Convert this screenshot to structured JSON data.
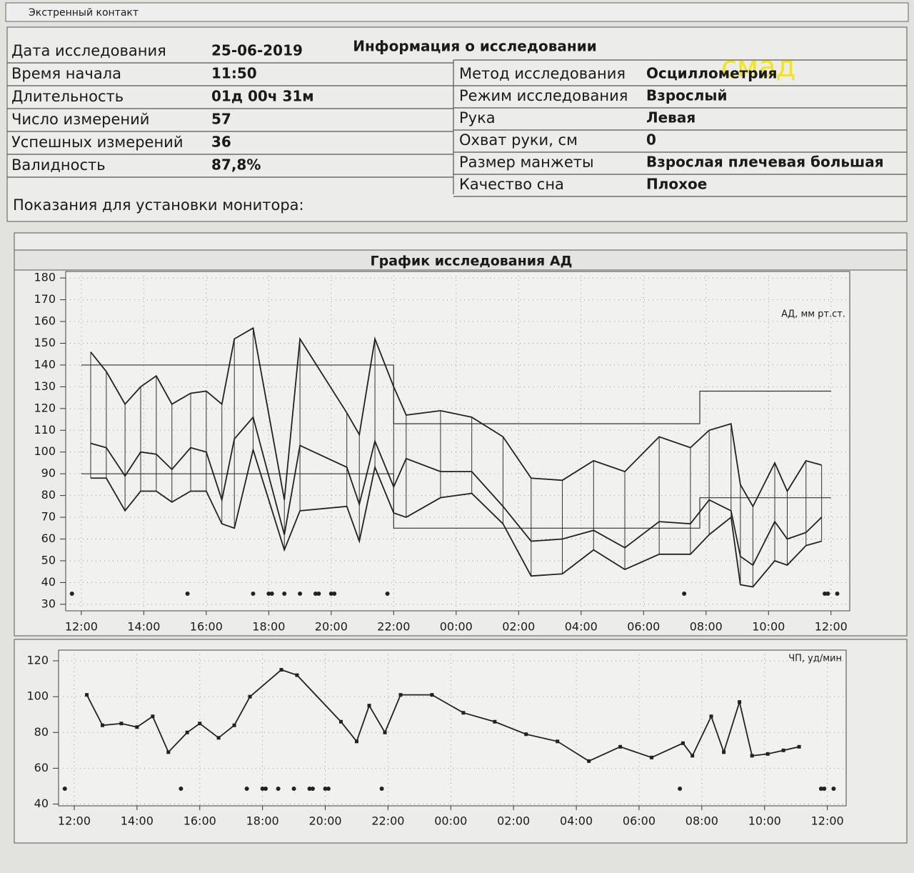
{
  "header": "Экстренный контакт",
  "annotation": "смад",
  "info": {
    "title": "Информация о исследовании",
    "left": [
      [
        "Дата исследования",
        "25-06-2019"
      ],
      [
        "Время начала",
        "11:50"
      ],
      [
        "Длительность",
        "01д 00ч 31м"
      ],
      [
        "Число измерений",
        "57"
      ],
      [
        "Успешных измерений",
        "36"
      ],
      [
        "Валидность",
        "87,8%"
      ]
    ],
    "right": [
      [
        "Метод исследования",
        "Осциллометрия"
      ],
      [
        "Режим исследования",
        "Взрослый"
      ],
      [
        "Рука",
        "Левая"
      ],
      [
        "Охват руки, см",
        "0"
      ],
      [
        "Размер манжеты",
        "Взрослая плечевая большая"
      ],
      [
        "Качество сна",
        "Плохое"
      ]
    ],
    "note": "Показания для установки монитора:"
  },
  "chart_data": [
    {
      "type": "line",
      "title": "График исследования АД",
      "y_label": "АД, мм рт.ст.",
      "x": [
        12.3,
        12.8,
        13.4,
        13.9,
        14.4,
        14.9,
        15.5,
        16.0,
        16.5,
        16.9,
        17.5,
        18.5,
        19.0,
        20.5,
        20.9,
        21.4,
        22.0,
        22.4,
        23.5,
        24.5,
        25.5,
        26.4,
        27.4,
        28.4,
        29.4,
        30.5,
        31.5,
        32.1,
        32.8,
        33.1,
        33.5,
        34.2,
        34.6,
        35.2,
        35.7
      ],
      "series": [
        {
          "color": "#222",
          "values": [
            146,
            137,
            122,
            130,
            135,
            122,
            127,
            128,
            122,
            152,
            157,
            78,
            152,
            118,
            108,
            152,
            130,
            117,
            119,
            116,
            107,
            88,
            87,
            96,
            91,
            107,
            102,
            110,
            113,
            85,
            75,
            95,
            82,
            96,
            94
          ]
        },
        {
          "color": "#222",
          "values": [
            104,
            102,
            89,
            100,
            99,
            92,
            102,
            100,
            78,
            106,
            116,
            62,
            103,
            93,
            76,
            105,
            84,
            97,
            91,
            91,
            75,
            59,
            60,
            64,
            56,
            68,
            67,
            78,
            73,
            52,
            48,
            68,
            60,
            63,
            70
          ]
        },
        {
          "color": "#222",
          "values": [
            88,
            88,
            73,
            82,
            82,
            77,
            82,
            82,
            67,
            65,
            101,
            55,
            73,
            75,
            59,
            93,
            72,
            70,
            79,
            81,
            67,
            43,
            44,
            55,
            46,
            53,
            53,
            62,
            70,
            39,
            38,
            50,
            48,
            57,
            59
          ]
        }
      ],
      "limits": [
        {
          "x": [
            12,
            22,
            22,
            31.8,
            31.8,
            36
          ],
          "values": [
            140,
            140,
            113,
            113,
            128,
            128
          ]
        },
        {
          "x": [
            12,
            22,
            22,
            31.8,
            31.8,
            36
          ],
          "values": [
            90,
            90,
            65,
            65,
            79,
            79
          ]
        }
      ],
      "markers": [
        11.7,
        15.4,
        17.5,
        18.0,
        18.1,
        18.5,
        19.0,
        19.5,
        19.6,
        20.0,
        20.1,
        21.8,
        31.3,
        35.8,
        35.9,
        36.2
      ],
      "xlim": [
        11.5,
        36.6
      ],
      "ylim": [
        27,
        183
      ],
      "xticks": [
        {
          "value": 12,
          "label": "12:00"
        },
        {
          "value": 14,
          "label": "14:00"
        },
        {
          "value": 16,
          "label": "16:00"
        },
        {
          "value": 18,
          "label": "18:00"
        },
        {
          "value": 20,
          "label": "20:00"
        },
        {
          "value": 22,
          "label": "22:00"
        },
        {
          "value": 24,
          "label": "00:00"
        },
        {
          "value": 26,
          "label": "02:00"
        },
        {
          "value": 28,
          "label": "04:00"
        },
        {
          "value": 30,
          "label": "06:00"
        },
        {
          "value": 32,
          "label": "08:00"
        },
        {
          "value": 34,
          "label": "10:00"
        },
        {
          "value": 36,
          "label": "12:00"
        }
      ],
      "yticks": [
        30,
        40,
        50,
        60,
        70,
        80,
        90,
        100,
        110,
        120,
        130,
        140,
        150,
        160,
        170,
        180
      ],
      "grid": true
    },
    {
      "type": "line",
      "y_label": "ЧП, уд/мин",
      "x": [
        12.4,
        12.9,
        13.5,
        14.0,
        14.5,
        15.0,
        15.6,
        16.0,
        16.6,
        17.1,
        17.6,
        18.6,
        19.1,
        20.5,
        21.0,
        21.4,
        21.9,
        22.4,
        23.4,
        24.4,
        25.4,
        26.4,
        27.4,
        28.4,
        29.4,
        30.4,
        31.4,
        31.7,
        32.3,
        32.7,
        33.2,
        33.6,
        34.1,
        34.6,
        35.1
      ],
      "series": [
        {
          "color": "#222",
          "values": [
            101,
            84,
            85,
            83,
            89,
            69,
            80,
            85,
            77,
            84,
            100,
            115,
            112,
            86,
            75,
            95,
            80,
            101,
            101,
            91,
            86,
            79,
            75,
            64,
            72,
            66,
            74,
            67,
            89,
            69,
            97,
            67,
            68,
            70,
            72
          ]
        }
      ],
      "markers": [
        11.7,
        15.4,
        17.5,
        18.0,
        18.1,
        18.5,
        19.0,
        19.5,
        19.6,
        20.0,
        20.1,
        21.8,
        31.3,
        35.8,
        35.9,
        36.2
      ],
      "xlim": [
        11.5,
        36.6
      ],
      "ylim": [
        39,
        126
      ],
      "xticks": [
        {
          "value": 12,
          "label": "12:00"
        },
        {
          "value": 14,
          "label": "14:00"
        },
        {
          "value": 16,
          "label": "16:00"
        },
        {
          "value": 18,
          "label": "18:00"
        },
        {
          "value": 20,
          "label": "20:00"
        },
        {
          "value": 22,
          "label": "22:00"
        },
        {
          "value": 24,
          "label": "00:00"
        },
        {
          "value": 26,
          "label": "02:00"
        },
        {
          "value": 28,
          "label": "04:00"
        },
        {
          "value": 30,
          "label": "06:00"
        },
        {
          "value": 32,
          "label": "08:00"
        },
        {
          "value": 34,
          "label": "10:00"
        },
        {
          "value": 36,
          "label": "12:00"
        }
      ],
      "yticks": [
        40,
        60,
        80,
        100,
        120
      ],
      "grid": true
    }
  ]
}
